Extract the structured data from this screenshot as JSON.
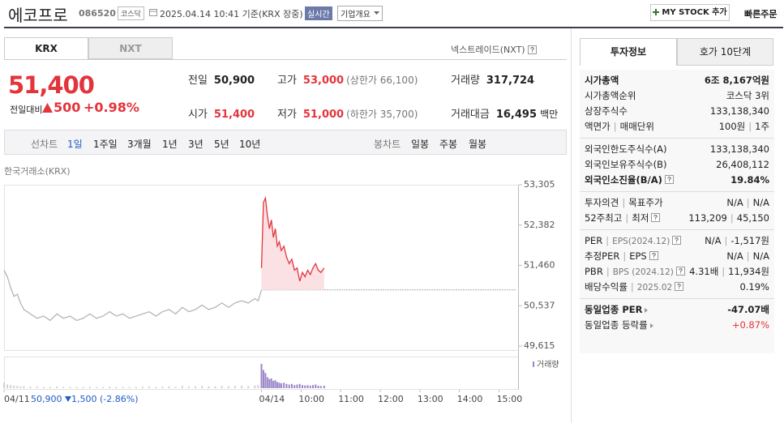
{
  "header": {
    "title": "에코프로",
    "code": "086520",
    "market": "코스닥",
    "time": "2025.04.14 10:41 기준(KRX 장중)",
    "realtime": "실시간",
    "overview": "기업개요",
    "my_stock": "MY STOCK 추가",
    "quick_order": "빠른주문"
  },
  "tabs": [
    "KRX",
    "NXT"
  ],
  "nxt_link": "넥스트레이드(NXT)",
  "price": {
    "current": "51,400",
    "change_label": "전일대비",
    "change": "500",
    "rate": "+0.98%"
  },
  "stats": [
    [
      {
        "label": "전일",
        "value": "50,900"
      },
      {
        "label": "고가",
        "value": "53,000",
        "note": "(상한가 66,100)"
      },
      {
        "label": "거래량",
        "value": "317,724"
      }
    ],
    [
      {
        "label": "시가",
        "value": "51,400"
      },
      {
        "label": "저가",
        "value": "51,000",
        "note": "(하한가 35,700)"
      },
      {
        "label": "거래대금",
        "value": "16,495",
        "unit": "백만"
      }
    ]
  ],
  "chart_toolbar": {
    "line_label": "선차트",
    "line_periods": [
      "1일",
      "1주일",
      "3개월",
      "1년",
      "3년",
      "5년",
      "10년"
    ],
    "candle_label": "봉차트",
    "candle_periods": [
      "일봉",
      "주봉",
      "월봉"
    ]
  },
  "exchange_label": "한국거래소(KRX)",
  "chart_data": {
    "type": "line",
    "ylim": [
      49615,
      53305
    ],
    "yticks": [
      {
        "value": 49615,
        "label": "49,615"
      },
      {
        "value": 50537,
        "label": "50,537"
      },
      {
        "value": 51460,
        "label": "51,460"
      },
      {
        "value": 52382,
        "label": "52,382"
      },
      {
        "value": 53305,
        "label": "53,305"
      }
    ],
    "xlim": [
      0,
      780
    ],
    "xticks": [
      {
        "value": 0,
        "label": "04/11"
      },
      {
        "value": 390,
        "label": "04/14"
      },
      {
        "value": 450,
        "label": "10:00"
      },
      {
        "value": 510,
        "label": "11:00"
      },
      {
        "value": 570,
        "label": "12:00"
      },
      {
        "value": 630,
        "label": "13:00"
      },
      {
        "value": 690,
        "label": "14:00"
      },
      {
        "value": 750,
        "label": "15:00"
      }
    ],
    "base_value": 50900,
    "series": [
      {
        "color": "#b5b5b5",
        "volume_color": "#cfcfcf",
        "x": [
          0,
          5,
          10,
          15,
          20,
          25,
          30,
          40,
          50,
          60,
          70,
          80,
          90,
          100,
          110,
          120,
          130,
          140,
          150,
          160,
          170,
          180,
          190,
          200,
          210,
          220,
          230,
          240,
          250,
          260,
          270,
          280,
          290,
          300,
          310,
          320,
          330,
          340,
          350,
          360,
          370,
          380,
          385,
          390
        ],
        "values": [
          51350,
          51200,
          50950,
          50750,
          50800,
          50600,
          50450,
          50350,
          50250,
          50300,
          50200,
          50350,
          50250,
          50300,
          50200,
          50250,
          50350,
          50250,
          50300,
          50400,
          50300,
          50350,
          50250,
          50300,
          50350,
          50400,
          50300,
          50400,
          50450,
          50350,
          50500,
          50400,
          50450,
          50550,
          50450,
          50500,
          50600,
          50500,
          50600,
          50650,
          50600,
          50700,
          50650,
          50900
        ],
        "volumes": [
          9000,
          6000,
          5000,
          4000,
          3500,
          3000,
          3000,
          2500,
          2500,
          2000,
          2000,
          2500,
          2000,
          2000,
          1800,
          2000,
          2200,
          1800,
          2000,
          2500,
          2000,
          2000,
          1800,
          2000,
          2200,
          2500,
          2000,
          2500,
          3000,
          2000,
          3500,
          2500,
          2800,
          3500,
          3000,
          3000,
          3500,
          3000,
          3500,
          4000,
          3500,
          4500,
          5000,
          6000
        ]
      },
      {
        "color": "#e3343c",
        "fill": "#fbe1e4",
        "volume_color": "#9a86c9",
        "x": [
          390,
          393,
          396,
          399,
          402,
          405,
          408,
          411,
          414,
          417,
          420,
          424,
          428,
          432,
          436,
          440,
          444,
          448,
          452,
          456,
          460,
          464,
          468,
          472,
          476,
          480,
          485
        ],
        "values": [
          51400,
          52900,
          53000,
          52600,
          52300,
          52500,
          52100,
          52300,
          51900,
          52000,
          51800,
          51900,
          51650,
          51500,
          51600,
          51350,
          51400,
          51100,
          51300,
          51200,
          51350,
          51250,
          51400,
          51500,
          51350,
          51300,
          51400
        ],
        "volumes": [
          40000,
          30000,
          25000,
          18000,
          15000,
          16000,
          12000,
          13000,
          10000,
          9000,
          8000,
          9000,
          7000,
          6000,
          7000,
          5000,
          6000,
          7000,
          5000,
          4500,
          5000,
          4000,
          5000,
          6000,
          4000,
          3500,
          4000
        ]
      }
    ],
    "volume_label": "거래량",
    "prev_day": {
      "close": "50,900",
      "change": "1,500",
      "rate": "(-2.86%)"
    }
  },
  "info": {
    "tabs": [
      "투자정보",
      "호가 10단계"
    ],
    "groups": [
      [
        {
          "label": [
            "시가총액"
          ],
          "value": [
            "6조 8,167억원"
          ]
        },
        {
          "label": [
            "시가총액순위"
          ],
          "value": [
            "코스닥 3위"
          ]
        },
        {
          "label": [
            "상장주식수"
          ],
          "value": [
            "133,138,340"
          ]
        },
        {
          "label": [
            "액면가",
            "매매단위"
          ],
          "value": [
            "100원",
            "1주"
          ]
        }
      ],
      [
        {
          "label": [
            "외국인한도주식수(A)"
          ],
          "value": [
            "133,138,340"
          ]
        },
        {
          "label": [
            "외국인보유주식수(B)"
          ],
          "value": [
            "26,408,112"
          ]
        },
        {
          "label": [
            "외국인소진율(B/A)"
          ],
          "value": [
            "19.84%"
          ]
        }
      ],
      [
        {
          "label": [
            "투자의견",
            "목표주가"
          ],
          "value": [
            "N/A",
            "N/A"
          ]
        },
        {
          "label": [
            "52주최고",
            "최저"
          ],
          "value": [
            "113,209",
            "45,150"
          ]
        }
      ],
      [
        {
          "label": [
            "PER",
            "EPS(2024.12)"
          ],
          "value": [
            "N/A",
            "-1,517원"
          ]
        },
        {
          "label": [
            "추정PER",
            "EPS"
          ],
          "value": [
            "N/A",
            "N/A"
          ]
        },
        {
          "label": [
            "PBR",
            "BPS (2024.12)"
          ],
          "value": [
            "4.31배",
            "11,934원"
          ]
        },
        {
          "label": [
            "배당수익률",
            "2025.02"
          ],
          "value": [
            "0.19%"
          ]
        }
      ],
      [
        {
          "label": [
            "동일업종 PER"
          ],
          "value": [
            "-47.07배"
          ]
        },
        {
          "label": [
            "동일업종 등락률"
          ],
          "value": [
            "+0.87%"
          ]
        }
      ]
    ]
  }
}
